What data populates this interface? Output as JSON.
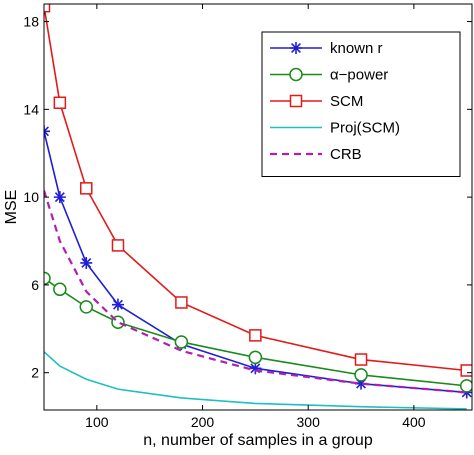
{
  "chart_data": {
    "type": "line",
    "xlabel": "n, number of samples in a group",
    "ylabel": "MSE",
    "xlim": [
      50,
      455
    ],
    "ylim": [
      0.3,
      18.8
    ],
    "xticks": [
      100,
      200,
      300,
      400
    ],
    "yticks": [
      2,
      6,
      10,
      14,
      18
    ],
    "grid": false,
    "legend_position": "top-right",
    "x": [
      50,
      65,
      90,
      120,
      180,
      250,
      350,
      450
    ],
    "series": [
      {
        "name": "known r",
        "color": "#1f1fd6",
        "marker": "asterisk",
        "dash": "solid",
        "x": [
          50,
          65,
          90,
          120,
          180,
          250,
          350,
          450
        ],
        "values": [
          13.0,
          10.0,
          7.0,
          5.1,
          3.3,
          2.2,
          1.5,
          1.1
        ]
      },
      {
        "name": "α−power",
        "color": "#1a8a1a",
        "marker": "circle",
        "dash": "solid",
        "x": [
          50,
          65,
          90,
          120,
          180,
          250,
          350,
          450
        ],
        "values": [
          6.3,
          5.8,
          5.0,
          4.3,
          3.4,
          2.7,
          1.9,
          1.4
        ]
      },
      {
        "name": "SCM",
        "color": "#e31a1a",
        "marker": "square",
        "dash": "solid",
        "x": [
          50,
          65,
          90,
          120,
          180,
          250,
          350,
          450
        ],
        "values": [
          18.7,
          14.3,
          10.4,
          7.8,
          5.2,
          3.7,
          2.6,
          2.1
        ]
      },
      {
        "name": "Proj(SCM)",
        "color": "#20c0c0",
        "marker": "none",
        "dash": "solid",
        "x": [
          50,
          65,
          90,
          120,
          180,
          250,
          350,
          450
        ],
        "values": [
          2.95,
          2.3,
          1.7,
          1.25,
          0.85,
          0.6,
          0.45,
          0.35
        ]
      },
      {
        "name": "CRB",
        "color": "#b020b0",
        "marker": "none",
        "dash": "dashed",
        "x": [
          50,
          65,
          90,
          120,
          180,
          250,
          350,
          450
        ],
        "values": [
          10.3,
          8.0,
          5.7,
          4.3,
          3.0,
          2.1,
          1.5,
          1.1
        ]
      }
    ]
  }
}
